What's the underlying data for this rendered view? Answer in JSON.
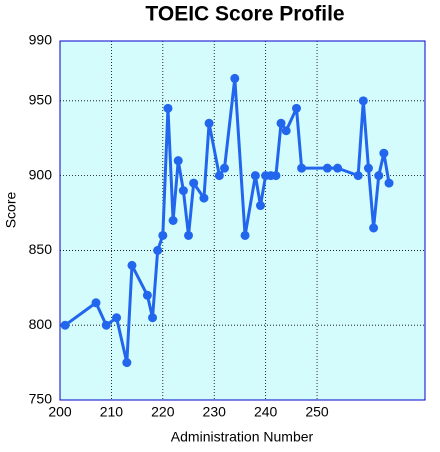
{
  "chart_data": {
    "type": "line",
    "title": "TOEIC Score Profile",
    "x_label": "Administration Number",
    "y_label": "Score",
    "x": [
      201,
      207,
      209,
      211,
      213,
      214,
      217,
      218,
      219,
      220,
      221,
      222,
      223,
      224,
      225,
      226,
      228,
      229,
      231,
      232,
      234,
      236,
      238,
      239,
      240,
      241,
      242,
      243,
      244,
      246,
      247,
      252,
      254,
      258,
      259,
      260,
      261,
      262,
      263,
      264
    ],
    "values": [
      800,
      815,
      800,
      805,
      775,
      840,
      820,
      805,
      850,
      860,
      945,
      870,
      910,
      890,
      860,
      895,
      885,
      935,
      900,
      905,
      965,
      860,
      900,
      880,
      900,
      900,
      900,
      935,
      930,
      945,
      905,
      905,
      905,
      900,
      950,
      905,
      865,
      900,
      915,
      895
    ],
    "color": "#2266ee",
    "xlim": [
      200,
      271
    ],
    "xticks": [
      200,
      210,
      220,
      230,
      240,
      250
    ],
    "ylim": [
      750,
      990
    ],
    "yticks": [
      750,
      800,
      850,
      900,
      950,
      990
    ],
    "grid": true
  }
}
